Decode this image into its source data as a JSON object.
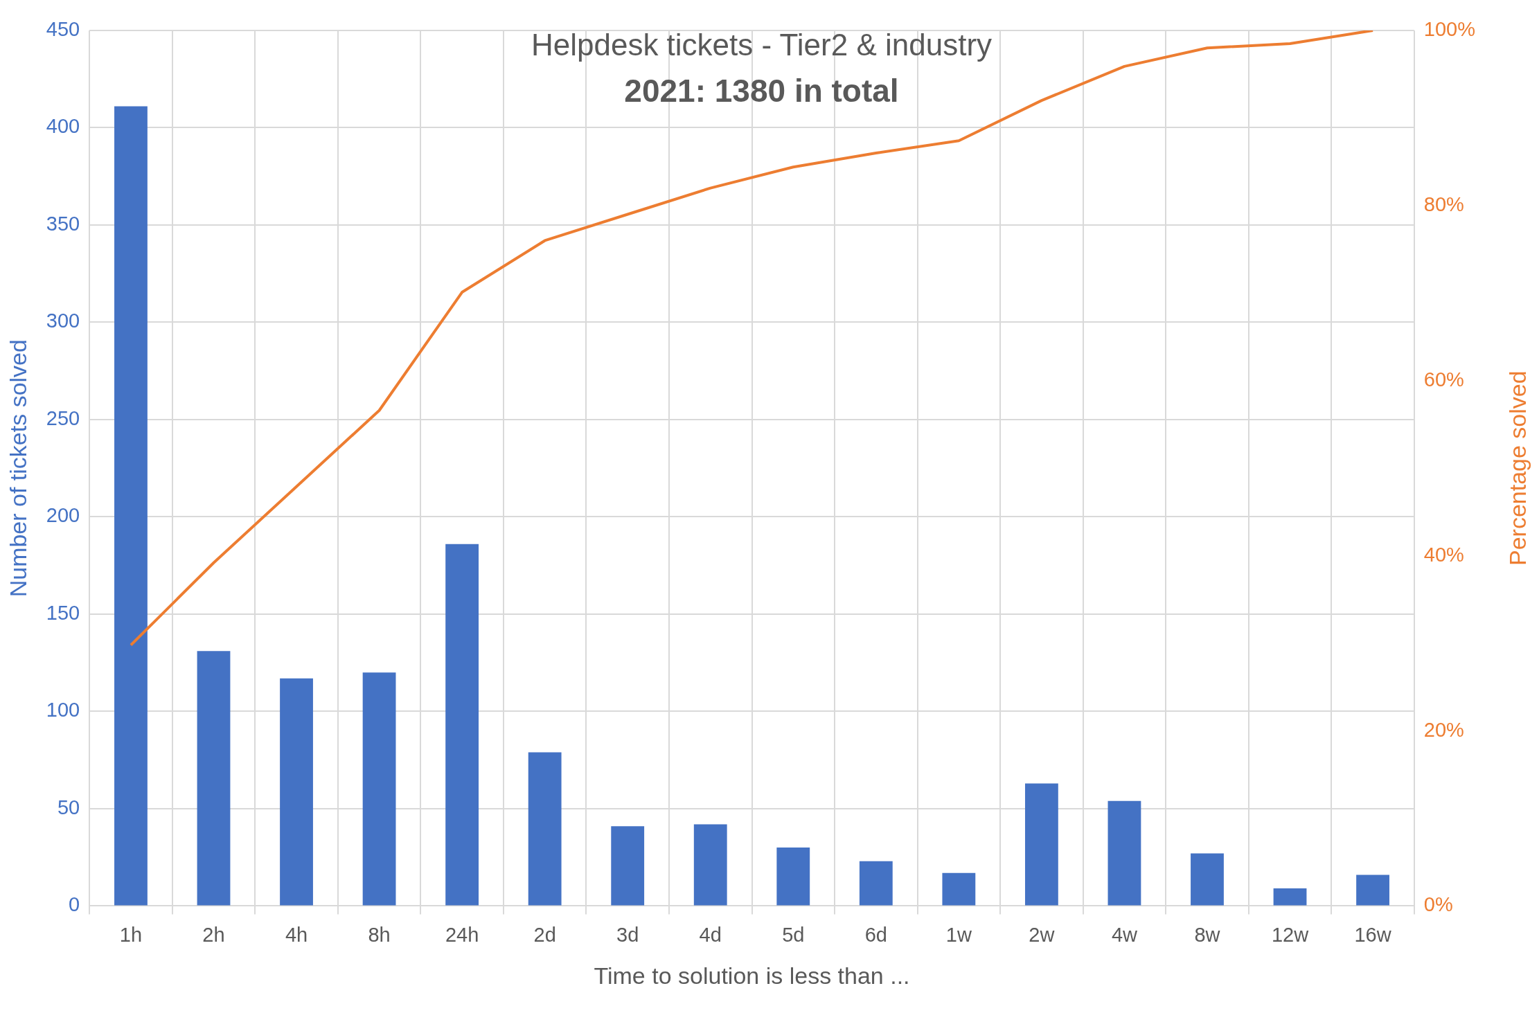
{
  "chart_data": {
    "type": "bar",
    "title": "Helpdesk tickets - Tier2 & industry",
    "subtitle": "2021: 1380 in total",
    "xlabel": "Time to solution is less than ...",
    "ylabel": "Number of tickets solved",
    "y2label": "Percentage solved",
    "categories": [
      "1h",
      "2h",
      "4h",
      "8h",
      "24h",
      "2d",
      "3d",
      "4d",
      "5d",
      "6d",
      "1w",
      "2w",
      "4w",
      "8w",
      "12w",
      "16w"
    ],
    "series": [
      {
        "color": "#4472c4",
        "values": [
          411,
          131,
          117,
          120,
          186,
          79,
          41,
          42,
          30,
          23,
          17,
          63,
          54,
          27,
          9,
          16
        ]
      },
      {
        "type": "line",
        "axis": "y2",
        "color": "#ed7d31",
        "marker": "none",
        "values": [
          29.8,
          39.2,
          47.9,
          56.6,
          70.1,
          76.0,
          79.0,
          82.0,
          84.4,
          86.0,
          87.4,
          92.0,
          95.9,
          98.0,
          98.5,
          100
        ]
      }
    ],
    "ylim": [
      0,
      450
    ],
    "yticks": [
      0,
      50,
      100,
      150,
      200,
      250,
      300,
      350,
      400,
      450
    ],
    "y2lim": [
      0,
      100
    ],
    "y2ticks": [
      {
        "value": 0,
        "label": "0%"
      },
      {
        "value": 20,
        "label": "20%"
      },
      {
        "value": 40,
        "label": "40%"
      },
      {
        "value": 60,
        "label": "60%"
      },
      {
        "value": 80,
        "label": "80%"
      },
      {
        "value": 100,
        "label": "100%"
      }
    ],
    "grid": true,
    "legend": false
  }
}
